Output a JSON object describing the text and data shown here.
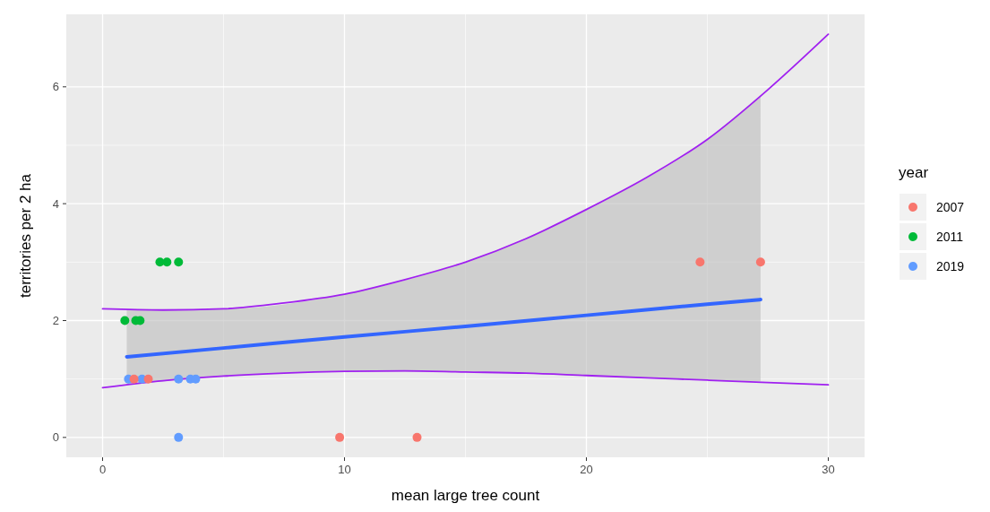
{
  "chart_data": {
    "type": "scatter",
    "xlabel": "mean large tree count",
    "ylabel": "territories per 2 ha",
    "legend_title": "year",
    "legend": "right",
    "grid": true,
    "marker": "circle",
    "xlim": [
      -1.5,
      31.5
    ],
    "ylim": [
      -0.34,
      7.24
    ],
    "xticks": [
      0,
      10,
      20,
      30
    ],
    "yticks": [
      0,
      2,
      4,
      6
    ],
    "series": [
      {
        "type": "line",
        "marker": "none",
        "color": "#3366ff",
        "x": [
          1,
          5,
          10,
          15,
          20,
          25,
          27.2
        ],
        "values": [
          1.38,
          1.53,
          1.72,
          1.9,
          2.09,
          2.28,
          2.36
        ],
        "lower": [
          0.9,
          1.05,
          1.13,
          1.12,
          1.06,
          0.98,
          0.96
        ],
        "upper": [
          2.19,
          2.2,
          2.45,
          3.0,
          3.9,
          5.1,
          5.85
        ]
      },
      {
        "type": "line",
        "marker": "none",
        "color": "#a020f0",
        "x": [
          0,
          2.5,
          5,
          7.5,
          10,
          12.5,
          15,
          17.5,
          20,
          22.5,
          25,
          27.5,
          30
        ],
        "values": [
          2.2,
          2.18,
          2.2,
          2.3,
          2.45,
          2.7,
          3.0,
          3.4,
          3.9,
          4.45,
          5.1,
          5.95,
          6.9
        ]
      },
      {
        "type": "line",
        "marker": "none",
        "color": "#a020f0",
        "x": [
          0,
          2.5,
          5,
          7.5,
          10,
          12.5,
          15,
          17.5,
          20,
          22.5,
          25,
          27.5,
          30
        ],
        "values": [
          0.85,
          0.97,
          1.05,
          1.1,
          1.13,
          1.14,
          1.12,
          1.1,
          1.06,
          1.02,
          0.98,
          0.94,
          0.9
        ]
      },
      {
        "name": "2007",
        "color": "#f8766d",
        "x": [
          1.3,
          1.89,
          9.8,
          13.0,
          24.7,
          27.2
        ],
        "values": [
          1,
          1,
          0,
          0,
          3,
          3
        ]
      },
      {
        "name": "2011",
        "color": "#00ba38",
        "x": [
          2.37,
          2.66,
          3.14,
          0.92,
          1.37,
          1.55
        ],
        "values": [
          3,
          3,
          3,
          2,
          2,
          2
        ]
      },
      {
        "name": "2019",
        "color": "#619cff",
        "x": [
          1.07,
          1.63,
          3.14,
          3.63,
          3.85,
          3.14
        ],
        "values": [
          1,
          1,
          1,
          1,
          1,
          0
        ]
      }
    ]
  }
}
